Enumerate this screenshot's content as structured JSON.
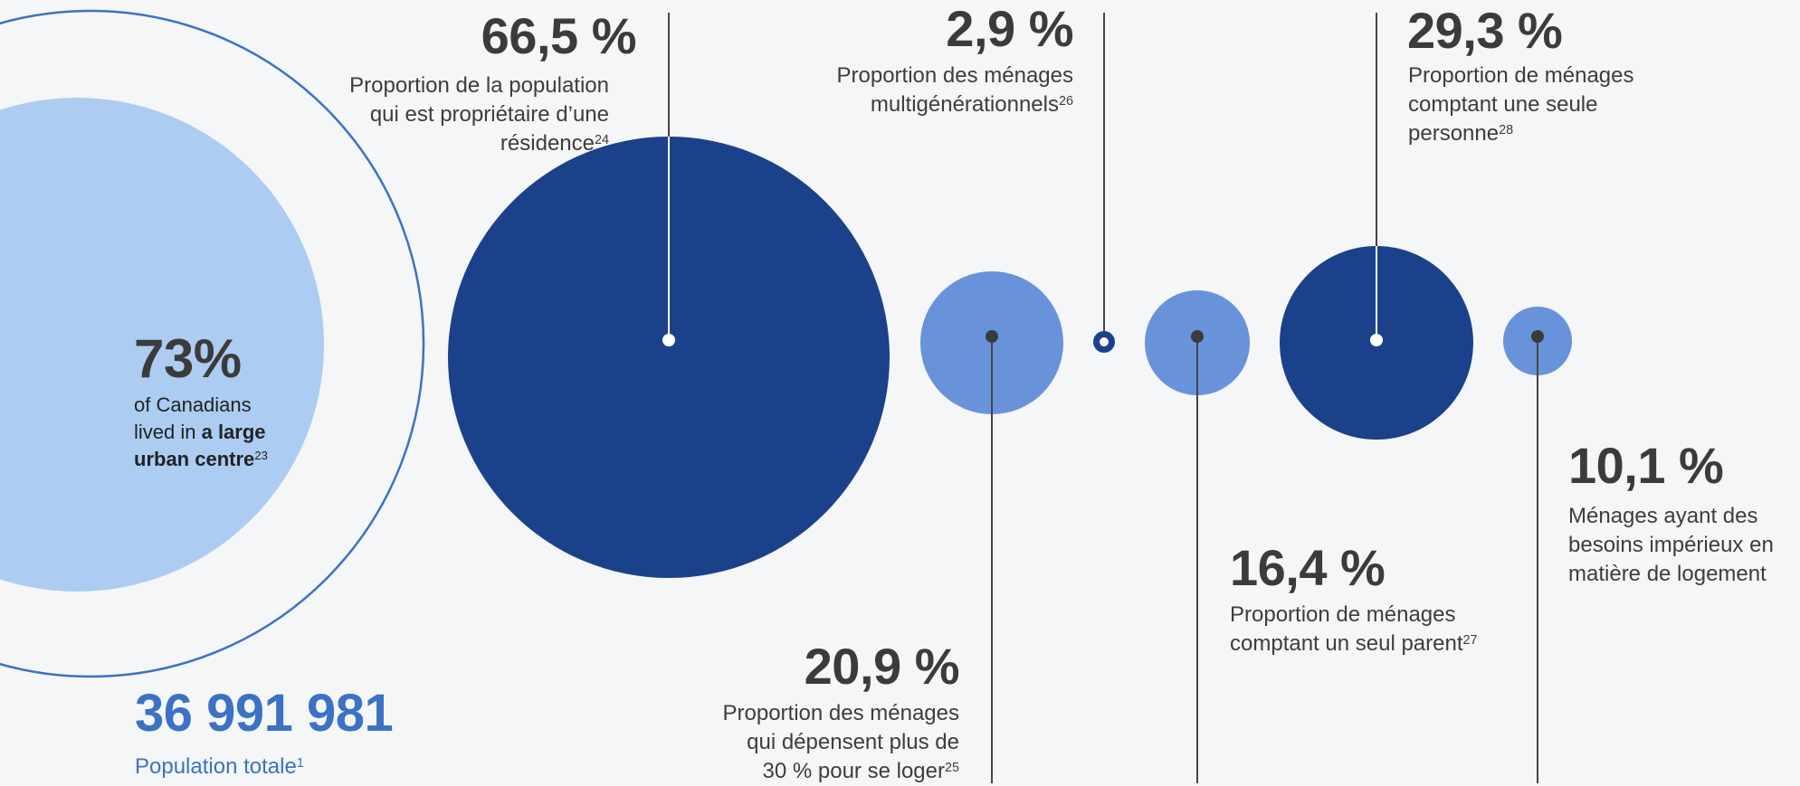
{
  "colors": {
    "background": "#f4f6f7",
    "light_blue": "#acccf2",
    "medium_blue": "#6893da",
    "dark_blue": "#1b418a",
    "outline_blue": "#3b72c4",
    "text_dark": "#3b3b3b",
    "line_gray": "#444444"
  },
  "urban": {
    "value": "73%",
    "line1": "of Canadians",
    "line2_prefix": "lived in ",
    "line2_bold": "a large",
    "line3_bold": "urban centre",
    "footnote": "23"
  },
  "population": {
    "value": "36 991 981",
    "label": "Population totale",
    "footnote": "1"
  },
  "stats": [
    {
      "id": "ownership",
      "value": "66,5 %",
      "lines": [
        "Proportion de la population",
        "qui est propriétaire d’une",
        "résidence"
      ],
      "footnote": "24",
      "fraction": 0.665
    },
    {
      "id": "housing-cost",
      "value": "20,9 %",
      "lines": [
        "Proportion des ménages",
        "qui dépensent plus de",
        "30 % pour se loger"
      ],
      "footnote": "25",
      "fraction": 0.209
    },
    {
      "id": "multigenerational",
      "value": "2,9 %",
      "lines": [
        "Proportion des ménages",
        "multigénérationnels"
      ],
      "footnote": "26",
      "fraction": 0.029
    },
    {
      "id": "single-parent",
      "value": "16,4 %",
      "lines": [
        "Proportion de ménages",
        "comptant un seul parent"
      ],
      "footnote": "27",
      "fraction": 0.164
    },
    {
      "id": "one-person",
      "value": "29,3 %",
      "lines": [
        "Proportion de ménages",
        "comptant une seule",
        "personne"
      ],
      "footnote": "28",
      "fraction": 0.293
    },
    {
      "id": "core-need",
      "value": "10,1 %",
      "lines": [
        "Ménages ayant des",
        "besoins impérieux en",
        "matière de logement"
      ],
      "footnote": "",
      "fraction": 0.101
    }
  ]
}
